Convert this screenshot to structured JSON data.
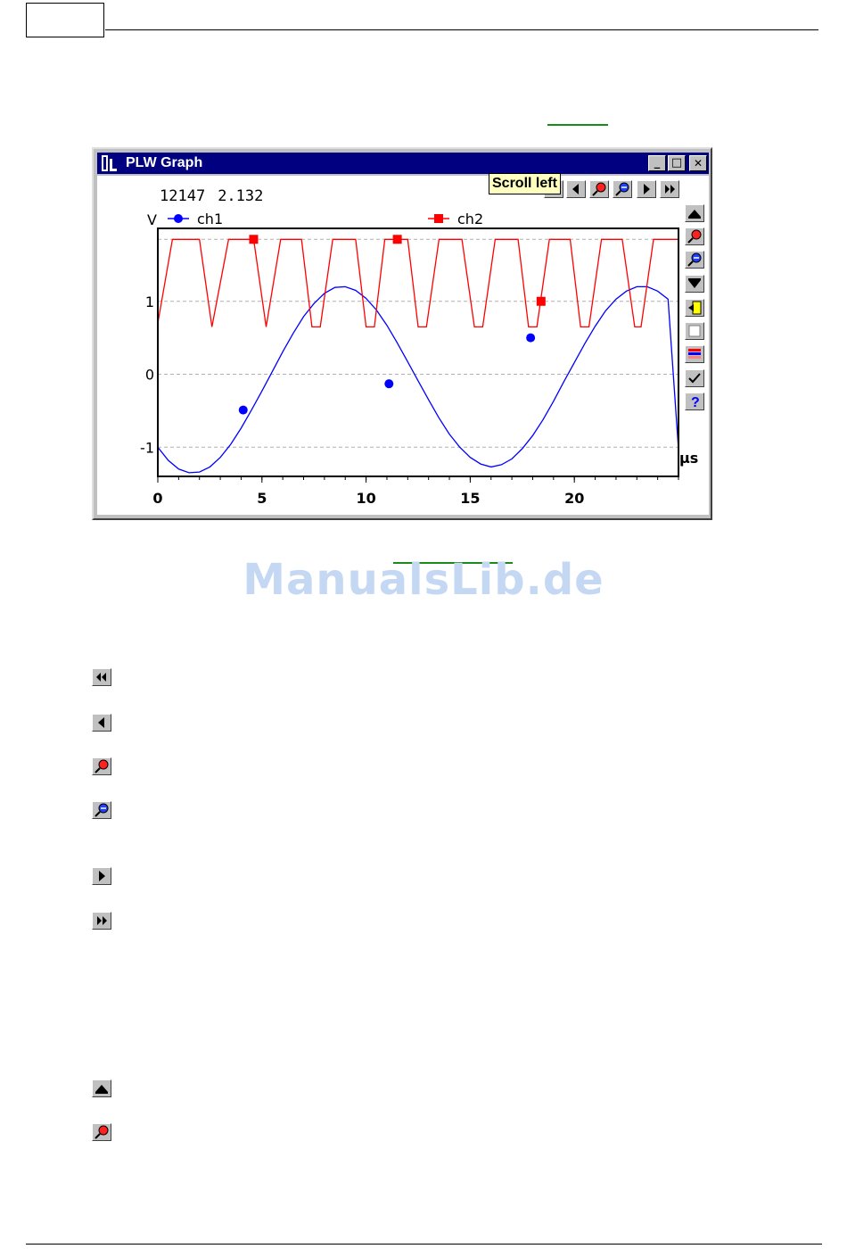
{
  "window": {
    "title": "PLW Graph",
    "controls": {
      "minimize": "_",
      "maximize": "□",
      "close": "✕"
    }
  },
  "readout": {
    "x_value": "12147",
    "y_value": "2.132"
  },
  "tooltip": "Scroll left",
  "icons": {
    "toolbar": [
      "scroll-far-left-icon",
      "scroll-left-icon",
      "zoom-in-icon",
      "zoom-out-icon",
      "scroll-right-icon",
      "scroll-far-right-icon"
    ],
    "side": [
      "scroll-up-icon",
      "zoom-in-vertical-icon",
      "zoom-out-vertical-icon",
      "scroll-down-icon",
      "exit-icon",
      "blank-icon",
      "channel-options-icon",
      "checkmark-icon",
      "help-icon"
    ],
    "described": [
      "scroll-far-left-icon",
      "scroll-left-icon",
      "zoom-in-icon",
      "zoom-out-icon",
      "scroll-right-icon",
      "scroll-far-right-icon",
      "scroll-up-icon",
      "zoom-in-vertical-icon"
    ]
  },
  "colors": {
    "ch1": "#0000ff",
    "ch2": "#ff0000",
    "titlebar": "#000080",
    "link": "#1a8a1a",
    "watermark": "#c5d8f3"
  },
  "watermark": "ManualsLib.de",
  "chart_data": {
    "type": "line",
    "xlabel": "µs",
    "ylabel": "V",
    "xlim": [
      0,
      25
    ],
    "ylim": [
      -1.4,
      2.0
    ],
    "x_ticks": [
      0,
      5,
      10,
      15,
      20
    ],
    "y_ticks": [
      -1,
      0,
      1
    ],
    "y_tick_labels": [
      "-1",
      "0",
      "1"
    ],
    "x_tick_labels": [
      "0",
      "5",
      "10",
      "15",
      "20"
    ],
    "grid": "horizontal dashed",
    "legend": "top",
    "series": [
      {
        "name": "ch1",
        "marker": "circle",
        "color": "#0000ff",
        "x": [
          0,
          0.5,
          1,
          1.5,
          2,
          2.5,
          3,
          3.5,
          4,
          4.5,
          5,
          5.5,
          6,
          6.5,
          7,
          7.5,
          8,
          8.5,
          9,
          9.5,
          10,
          10.5,
          11,
          11.5,
          12,
          12.5,
          13,
          13.5,
          14,
          14.5,
          15,
          15.5,
          16,
          16.5,
          17,
          17.5,
          18,
          18.5,
          19,
          19.5,
          20,
          20.5,
          21,
          21.5,
          22,
          22.5,
          23,
          23.5,
          24,
          24.5,
          25
        ],
        "y": [
          -1.0,
          -1.18,
          -1.3,
          -1.35,
          -1.34,
          -1.27,
          -1.14,
          -0.96,
          -0.74,
          -0.49,
          -0.23,
          0.04,
          0.31,
          0.56,
          0.79,
          0.97,
          1.11,
          1.19,
          1.2,
          1.15,
          1.04,
          0.88,
          0.67,
          0.43,
          0.17,
          -0.09,
          -0.35,
          -0.6,
          -0.82,
          -1.0,
          -1.14,
          -1.23,
          -1.27,
          -1.24,
          -1.16,
          -1.02,
          -0.84,
          -0.62,
          -0.37,
          -0.1,
          0.16,
          0.42,
          0.66,
          0.87,
          1.03,
          1.14,
          1.2,
          1.2,
          1.14,
          1.03,
          -1.03
        ],
        "markers_x": [
          4.1,
          11.1,
          17.9
        ],
        "markers_y": [
          -0.49,
          -0.13,
          0.5
        ]
      },
      {
        "name": "ch2",
        "marker": "square",
        "color": "#ff0000",
        "x": [
          0,
          0.7,
          1.0,
          2.0,
          2.6,
          3.4,
          3.9,
          4.6,
          5.2,
          5.9,
          6.9,
          7.4,
          7.8,
          8.4,
          9.5,
          10.0,
          10.4,
          10.9,
          12.0,
          12.5,
          12.9,
          13.5,
          14.6,
          15.2,
          15.6,
          16.2,
          17.3,
          17.8,
          18.2,
          18.8,
          19.8,
          20.3,
          20.7,
          21.3,
          22.3,
          22.9,
          23.2,
          23.8,
          25.0
        ],
        "y": [
          0.7,
          1.85,
          1.85,
          1.85,
          0.65,
          1.85,
          1.85,
          1.85,
          0.65,
          1.85,
          1.85,
          0.65,
          0.65,
          1.85,
          1.85,
          0.65,
          0.65,
          1.85,
          1.85,
          0.65,
          0.65,
          1.85,
          1.85,
          0.65,
          0.65,
          1.85,
          1.85,
          0.65,
          0.65,
          1.85,
          1.85,
          0.65,
          0.65,
          1.85,
          1.85,
          0.65,
          0.65,
          1.85,
          1.85
        ],
        "markers_x": [
          4.6,
          11.5,
          18.4
        ],
        "markers_y": [
          1.85,
          1.85,
          1.0
        ]
      }
    ]
  }
}
